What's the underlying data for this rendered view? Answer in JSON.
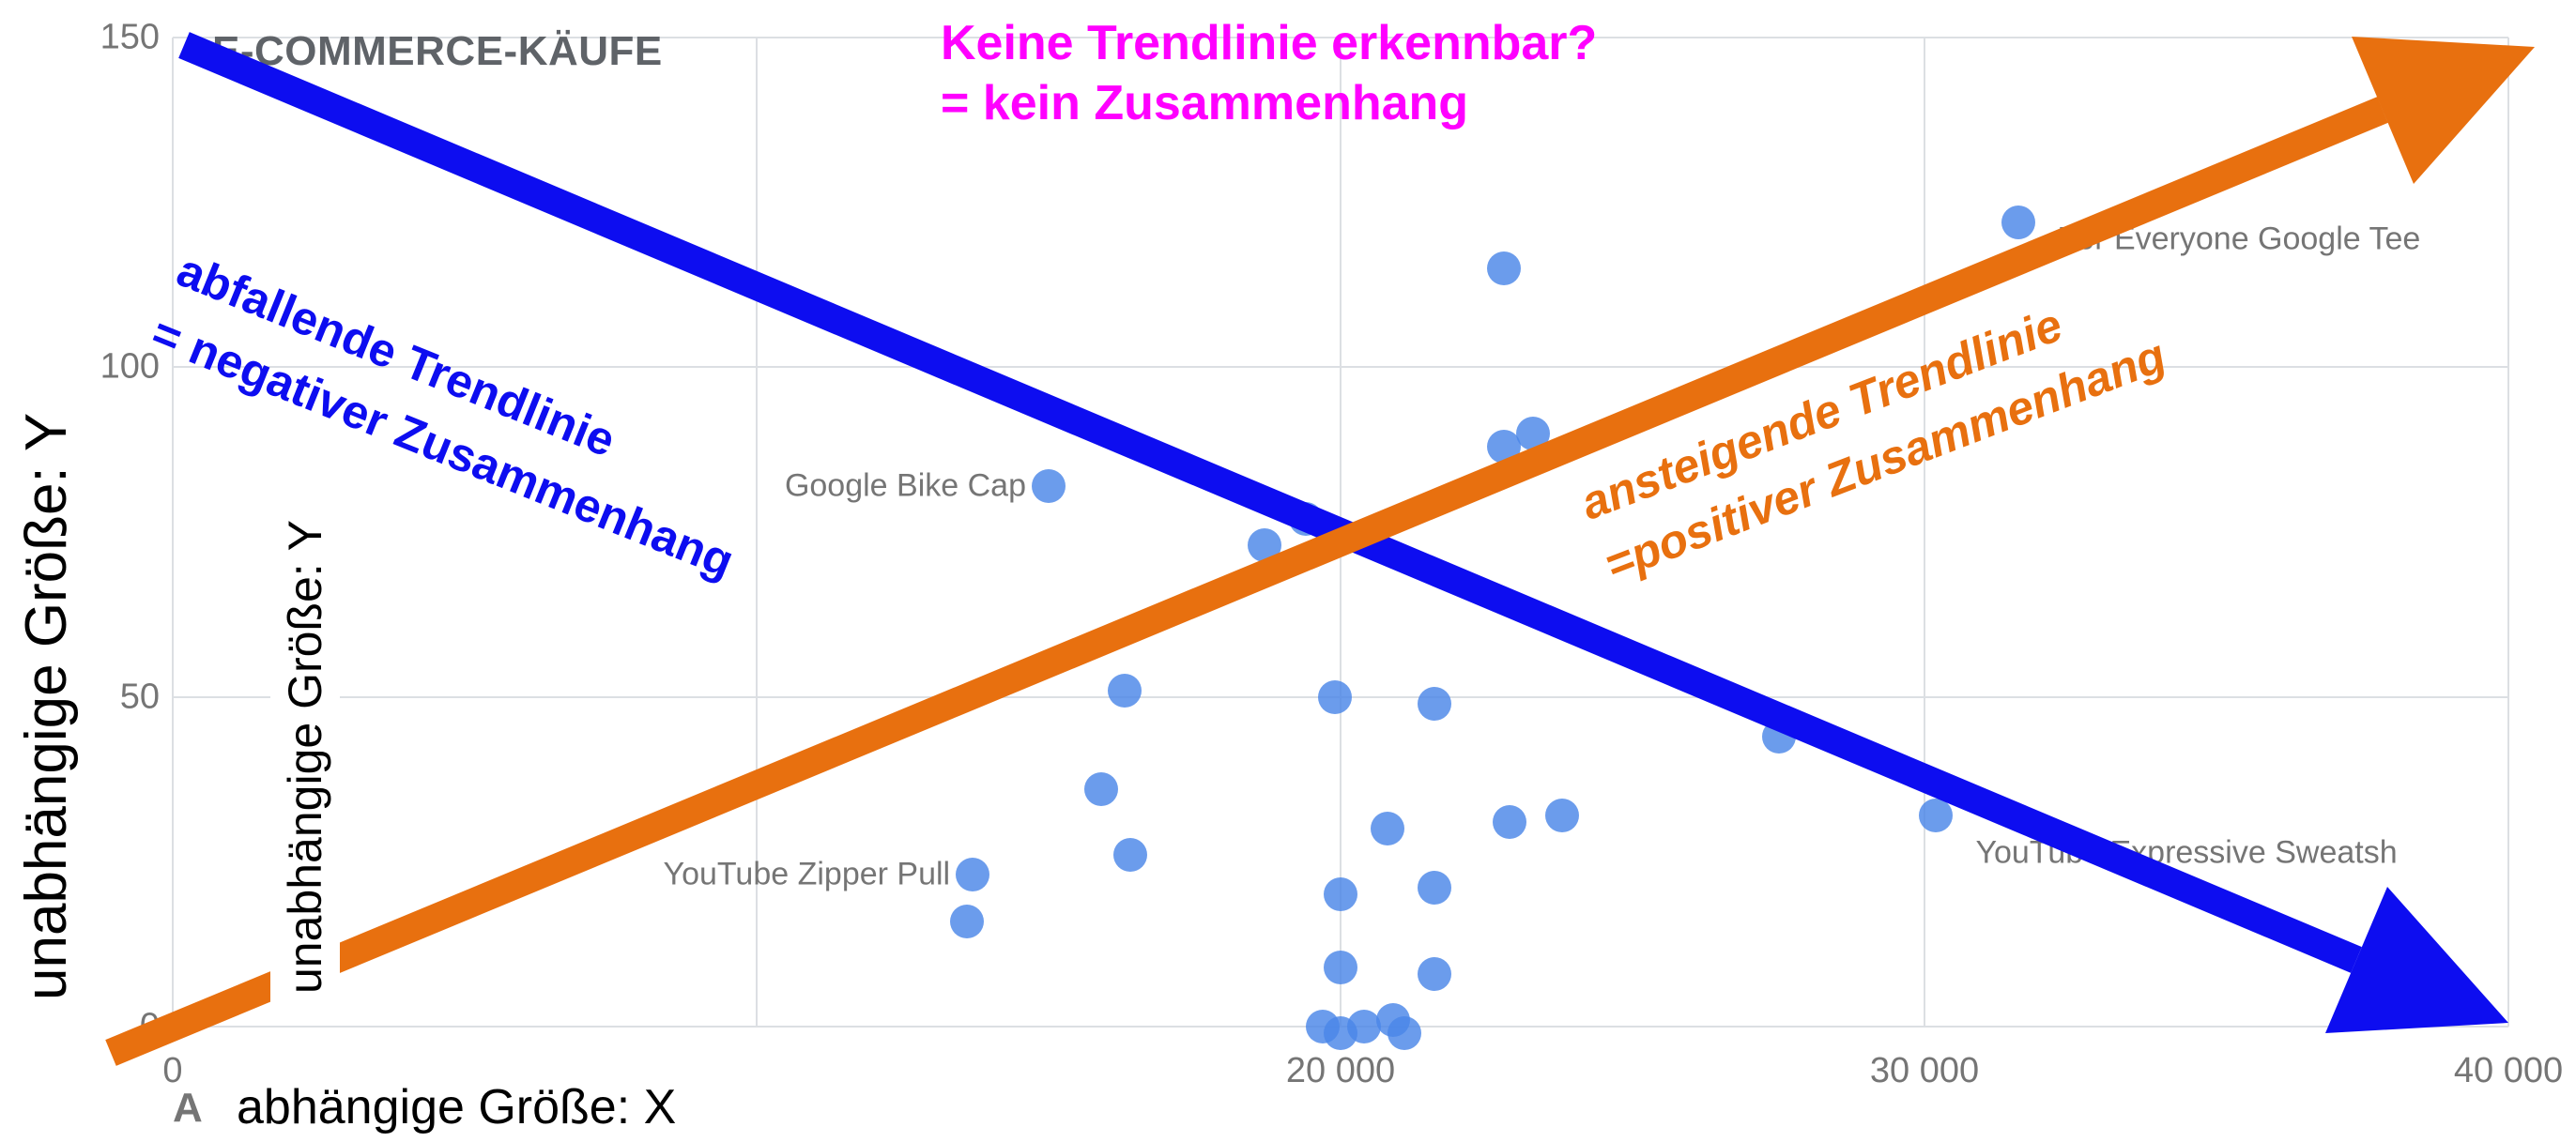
{
  "title": "E-COMMERCE-KÄUFE",
  "colors": {
    "trend_up_arrow": "#e8700f",
    "trend_down_arrow": "#0d0df0",
    "no_trend_text": "#ff00ff",
    "dots": "#4a86e8",
    "gridlines": "#dcdfe3",
    "tick_text": "#757575",
    "data_label_text": "#757575",
    "title_text": "#5f6368"
  },
  "annotations": {
    "no_trend": {
      "line1": "Keine Trendlinie erkennbar?",
      "line2": "= kein Zusammenhang"
    },
    "negative": {
      "line1": "abfallende Trendlinie",
      "line2": "= negativer Zusammenhang"
    },
    "positive": {
      "line1": "ansteigende Trendlinie",
      "line2": "=positiver Zusammenhang"
    }
  },
  "axes": {
    "y_outer_label": "unabhängige Größe: Y",
    "y_inner_label": "unabhängige Größe: Y",
    "x_label": "abhängige Größe: X",
    "x_label_prefix": "A",
    "x_ticks": [
      {
        "v": 0,
        "label": "0"
      },
      {
        "v": 20000,
        "label": "20 000"
      },
      {
        "v": 30000,
        "label": "30 000"
      },
      {
        "v": 40000,
        "label": "40 000"
      }
    ],
    "y_ticks": [
      {
        "v": 0,
        "label": "0"
      },
      {
        "v": 50,
        "label": "50"
      },
      {
        "v": 100,
        "label": "100"
      },
      {
        "v": 150,
        "label": "150"
      }
    ]
  },
  "chart_data": {
    "type": "scatter",
    "title": "E-COMMERCE-KÄUFE",
    "xlabel": "abhängige Größe: X",
    "ylabel": "unabhängige Größe: Y",
    "xlim": [
      0,
      40000
    ],
    "ylim": [
      0,
      150
    ],
    "grid": true,
    "x_gridlines": [
      0,
      10000,
      20000,
      30000,
      40000
    ],
    "y_gridlines": [
      0,
      50,
      100,
      150
    ],
    "points": [
      {
        "x": 15000,
        "y": 82,
        "label": "Google Bike Cap",
        "label_side": "left",
        "label_dy": 0
      },
      {
        "x": 22800,
        "y": 115
      },
      {
        "x": 22800,
        "y": 88
      },
      {
        "x": 23300,
        "y": 90
      },
      {
        "x": 31600,
        "y": 122,
        "label": "For Everyone Google Tee",
        "label_side": "right",
        "label_dy": 18
      },
      {
        "x": 19400,
        "y": 77
      },
      {
        "x": 18700,
        "y": 73
      },
      {
        "x": 16300,
        "y": 51
      },
      {
        "x": 19900,
        "y": 50
      },
      {
        "x": 21600,
        "y": 49
      },
      {
        "x": 27500,
        "y": 44
      },
      {
        "x": 20800,
        "y": 30
      },
      {
        "x": 22900,
        "y": 31
      },
      {
        "x": 23800,
        "y": 32
      },
      {
        "x": 30200,
        "y": 32,
        "label": "YouTube Expressive Sweatsh",
        "label_side": "right",
        "label_dy": 40
      },
      {
        "x": 15900,
        "y": 36
      },
      {
        "x": 16400,
        "y": 26
      },
      {
        "x": 13700,
        "y": 23,
        "label": "YouTube Zipper Pull",
        "label_side": "left",
        "label_dy": 0
      },
      {
        "x": 13600,
        "y": 16
      },
      {
        "x": 20000,
        "y": 20
      },
      {
        "x": 21600,
        "y": 21
      },
      {
        "x": 20000,
        "y": 9
      },
      {
        "x": 21600,
        "y": 8
      },
      {
        "x": 19700,
        "y": 0
      },
      {
        "x": 20000,
        "y": -1
      },
      {
        "x": 20400,
        "y": 0
      },
      {
        "x": 20900,
        "y": 1
      },
      {
        "x": 21100,
        "y": -1
      }
    ]
  }
}
